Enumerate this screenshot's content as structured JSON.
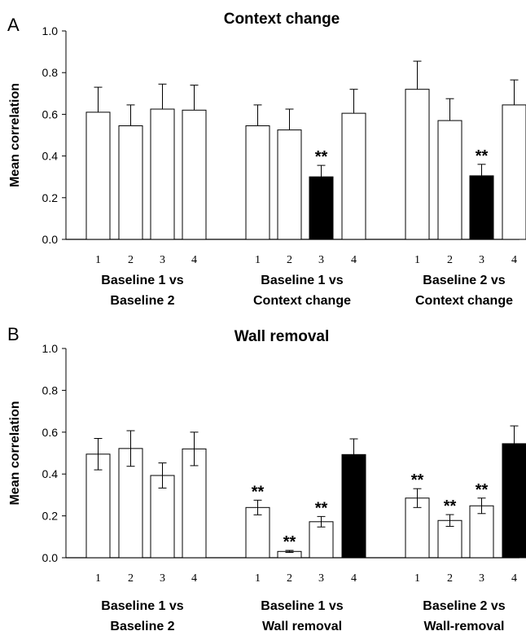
{
  "chart_data": [
    {
      "panel": "A",
      "type": "bar",
      "title": "Context change",
      "ylabel": "Mean correlation",
      "ylim": [
        0,
        1
      ],
      "yticks": [
        "0.0",
        "0.2",
        "0.4",
        "0.6",
        "0.8",
        "1.0"
      ],
      "groups": [
        {
          "label_lines": [
            "Baseline 1 vs",
            "Baseline 2"
          ],
          "bars": [
            {
              "x": "1",
              "value": 0.61,
              "error": 0.12,
              "fill": "#ffffff",
              "sig": ""
            },
            {
              "x": "2",
              "value": 0.545,
              "error": 0.1,
              "fill": "#ffffff",
              "sig": ""
            },
            {
              "x": "3",
              "value": 0.625,
              "error": 0.12,
              "fill": "#ffffff",
              "sig": ""
            },
            {
              "x": "4",
              "value": 0.62,
              "error": 0.12,
              "fill": "#ffffff",
              "sig": ""
            }
          ]
        },
        {
          "label_lines": [
            "Baseline 1 vs",
            "Context change"
          ],
          "bars": [
            {
              "x": "1",
              "value": 0.545,
              "error": 0.1,
              "fill": "#ffffff",
              "sig": ""
            },
            {
              "x": "2",
              "value": 0.525,
              "error": 0.1,
              "fill": "#ffffff",
              "sig": ""
            },
            {
              "x": "3",
              "value": 0.3,
              "error": 0.055,
              "fill": "#000000",
              "sig": "**"
            },
            {
              "x": "4",
              "value": 0.605,
              "error": 0.115,
              "fill": "#ffffff",
              "sig": ""
            }
          ]
        },
        {
          "label_lines": [
            "Baseline 2 vs",
            "Context change"
          ],
          "bars": [
            {
              "x": "1",
              "value": 0.72,
              "error": 0.135,
              "fill": "#ffffff",
              "sig": ""
            },
            {
              "x": "2",
              "value": 0.57,
              "error": 0.105,
              "fill": "#ffffff",
              "sig": ""
            },
            {
              "x": "3",
              "value": 0.305,
              "error": 0.055,
              "fill": "#000000",
              "sig": "**"
            },
            {
              "x": "4",
              "value": 0.645,
              "error": 0.12,
              "fill": "#ffffff",
              "sig": ""
            }
          ]
        }
      ]
    },
    {
      "panel": "B",
      "type": "bar",
      "title": "Wall removal",
      "ylabel": "Mean correlation",
      "ylim": [
        0,
        1
      ],
      "yticks": [
        "0.0",
        "0.2",
        "0.4",
        "0.6",
        "0.8",
        "1.0"
      ],
      "groups": [
        {
          "label_lines": [
            "Baseline 1 vs",
            "Baseline 2"
          ],
          "bars": [
            {
              "x": "1",
              "value": 0.495,
              "error": 0.075,
              "fill": "#ffffff",
              "sig": ""
            },
            {
              "x": "2",
              "value": 0.522,
              "error": 0.085,
              "fill": "#ffffff",
              "sig": ""
            },
            {
              "x": "3",
              "value": 0.393,
              "error": 0.06,
              "fill": "#ffffff",
              "sig": ""
            },
            {
              "x": "4",
              "value": 0.52,
              "error": 0.08,
              "fill": "#ffffff",
              "sig": ""
            }
          ]
        },
        {
          "label_lines": [
            "Baseline 1 vs",
            "Wall removal"
          ],
          "bars": [
            {
              "x": "1",
              "value": 0.24,
              "error": 0.035,
              "fill": "#ffffff",
              "sig": "**"
            },
            {
              "x": "2",
              "value": 0.03,
              "error": 0.005,
              "fill": "#ffffff",
              "sig": "**"
            },
            {
              "x": "3",
              "value": 0.172,
              "error": 0.025,
              "fill": "#ffffff",
              "sig": "**"
            },
            {
              "x": "4",
              "value": 0.493,
              "error": 0.075,
              "fill": "#000000",
              "sig": ""
            }
          ]
        },
        {
          "label_lines": [
            "Baseline 2 vs",
            "Wall-removal"
          ],
          "bars": [
            {
              "x": "1",
              "value": 0.285,
              "error": 0.045,
              "fill": "#ffffff",
              "sig": "**"
            },
            {
              "x": "2",
              "value": 0.178,
              "error": 0.028,
              "fill": "#ffffff",
              "sig": "**"
            },
            {
              "x": "3",
              "value": 0.248,
              "error": 0.037,
              "fill": "#ffffff",
              "sig": "**"
            },
            {
              "x": "4",
              "value": 0.545,
              "error": 0.085,
              "fill": "#000000",
              "sig": ""
            }
          ]
        }
      ]
    }
  ]
}
